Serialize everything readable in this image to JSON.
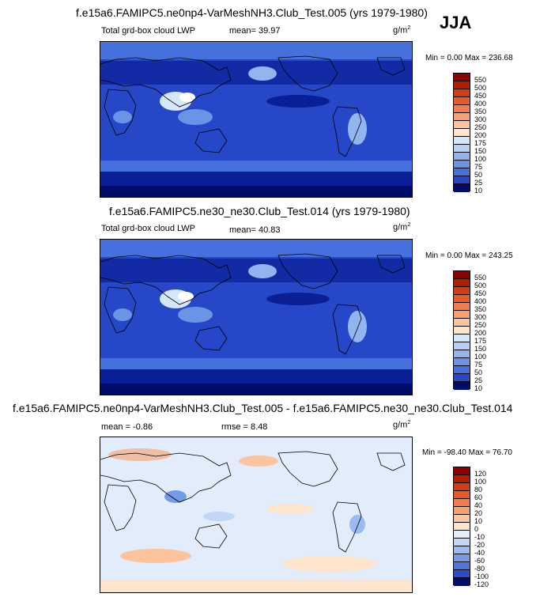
{
  "season": "JJA",
  "panels": [
    {
      "title": "f.e15a6.FAMIPC5.ne0np4-VarMeshNH3.Club_Test.005 (yrs 1979-1980)",
      "variable": "Total grd-box cloud LWP",
      "stat": "mean=  39.97",
      "units_base": "g/m",
      "units_exp": "2",
      "minmax": "Min =   0.00 Max = 236.68"
    },
    {
      "title": "f.e15a6.FAMIPC5.ne30_ne30.Club_Test.014 (yrs 1979-1980)",
      "variable": "Total grd-box cloud LWP",
      "stat": "mean=  40.83",
      "units_base": "g/m",
      "units_exp": "2",
      "minmax": "Min =   0.00 Max = 243.25"
    },
    {
      "title": "f.e15a6.FAMIPC5.ne0np4-VarMeshNH3.Club_Test.005 - f.e15a6.FAMIPC5.ne30_ne30.Club_Test.014",
      "stat": "mean =  -0.86",
      "rmse": "rmse =   8.48",
      "units_base": "g/m",
      "units_exp": "2",
      "minmax": "Min = -98.40 Max =  76.70"
    }
  ],
  "chart_data": [
    {
      "type": "heatmap",
      "title": "f.e15a6.FAMIPC5.ne0np4-VarMeshNH3.Club_Test.005 (yrs 1979-1980)",
      "variable": "Total grd-box cloud LWP",
      "mean": 39.97,
      "min": 0.0,
      "max": 236.68,
      "levels": [
        "550",
        "500",
        "450",
        "400",
        "350",
        "300",
        "250",
        "200",
        "175",
        "150",
        "100",
        "75",
        "50",
        "25",
        "10"
      ],
      "colors": [
        "#8b0000",
        "#b41e00",
        "#d23c12",
        "#e85a2a",
        "#f47c48",
        "#f9a070",
        "#fcc39d",
        "#fde4cb",
        "#d7e7fb",
        "#b7d0f5",
        "#92b4ef",
        "#6b93e6",
        "#4670dc",
        "#2547c8",
        "#0a1f96",
        "#000c6a"
      ],
      "legend": "right"
    },
    {
      "type": "heatmap",
      "title": "f.e15a6.FAMIPC5.ne30_ne30.Club_Test.014 (yrs 1979-1980)",
      "variable": "Total grd-box cloud LWP",
      "mean": 40.83,
      "min": 0.0,
      "max": 243.25,
      "levels": [
        "550",
        "500",
        "450",
        "400",
        "350",
        "300",
        "250",
        "200",
        "175",
        "150",
        "100",
        "75",
        "50",
        "25",
        "10"
      ],
      "colors": [
        "#8b0000",
        "#b41e00",
        "#d23c12",
        "#e85a2a",
        "#f47c48",
        "#f9a070",
        "#fcc39d",
        "#fde4cb",
        "#d7e7fb",
        "#b7d0f5",
        "#92b4ef",
        "#6b93e6",
        "#4670dc",
        "#2547c8",
        "#0a1f96",
        "#000c6a"
      ],
      "legend": "right"
    },
    {
      "type": "heatmap",
      "title": "f.e15a6.FAMIPC5.ne0np4-VarMeshNH3.Club_Test.005 - f.e15a6.FAMIPC5.ne30_ne30.Club_Test.014",
      "mean": -0.86,
      "rmse": 8.48,
      "min": -98.4,
      "max": 76.7,
      "levels": [
        "120",
        "100",
        "80",
        "60",
        "40",
        "20",
        "10",
        "0",
        "-10",
        "-20",
        "-40",
        "-60",
        "-80",
        "-100",
        "-120"
      ],
      "colors": [
        "#8b0000",
        "#b41e00",
        "#d23c12",
        "#e85a2a",
        "#f47c48",
        "#f9a070",
        "#fcc39d",
        "#fde4cb",
        "#e2ecfb",
        "#c2d6f6",
        "#9cbbf0",
        "#759be7",
        "#4e76dc",
        "#2a4cc8",
        "#0e2597",
        "#000c6a"
      ],
      "legend": "right"
    }
  ]
}
